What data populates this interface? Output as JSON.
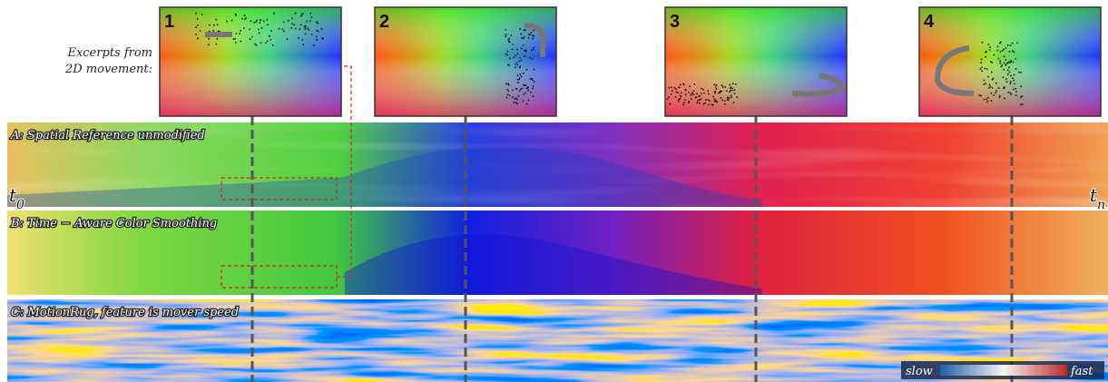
{
  "caption": {
    "lines": [
      "Excerpts from",
      "2D movement:"
    ]
  },
  "excerpts": [
    {
      "label": "1"
    },
    {
      "label": "2"
    },
    {
      "label": "3"
    },
    {
      "label": "4"
    }
  ],
  "rows": [
    {
      "label": "A: Spatial Reference unmodified"
    },
    {
      "label": "B: Time − Aware Color Smoothing"
    },
    {
      "label": "C: MotionRug, feature is mover speed"
    }
  ],
  "time_start": {
    "symbol": "t",
    "subscript": "0"
  },
  "time_end": {
    "symbol": "t",
    "subscript": "n"
  },
  "legend": {
    "low": "slow",
    "high": "fast"
  }
}
